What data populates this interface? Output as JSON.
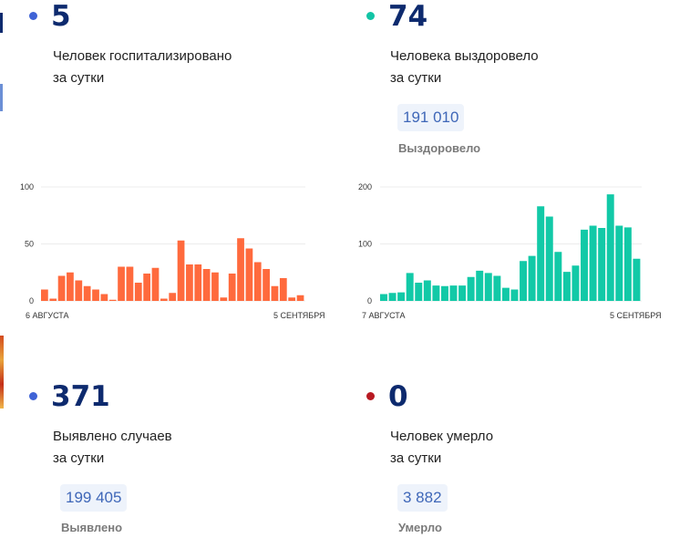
{
  "colors": {
    "blue_dot": "#3f63d6",
    "teal_dot": "#12c4a5",
    "red_dot": "#b81a22",
    "number": "#0d2a6e",
    "bar_orange": "#ff6a3d",
    "bar_teal": "#12c9a7",
    "grid": "#ececec",
    "chip_bg": "#eef3fb",
    "chip_text": "#3f67b8"
  },
  "hospitalized": {
    "value": "5",
    "label_line1": "Человек госпитализировано",
    "label_line2": "за сутки"
  },
  "recovered": {
    "value": "74",
    "label_line1": "Человека выздоровело",
    "label_line2": "за сутки",
    "total": "191 010",
    "total_caption": "Выздоровело"
  },
  "cases": {
    "value": "371",
    "label_line1": "Выявлено случаев",
    "label_line2": "за сутки",
    "total": "199 405",
    "total_caption": "Выявлено"
  },
  "deaths": {
    "value": "0",
    "label_line1": "Человек умерло",
    "label_line2": "за сутки",
    "total": "3 882",
    "total_caption": "Умерло"
  },
  "chart_data": [
    {
      "type": "bar",
      "ylim": [
        0,
        100
      ],
      "y_ticks": [
        "100",
        "50",
        "0"
      ],
      "x_start_label": "6 АВГУСТА",
      "x_end_label": "5 СЕНТЯБРЯ",
      "grid": true,
      "values": [
        10,
        2,
        22,
        25,
        18,
        13,
        10,
        6,
        1,
        30,
        30,
        16,
        24,
        29,
        2,
        7,
        53,
        32,
        32,
        28,
        25,
        3,
        24,
        55,
        46,
        34,
        28,
        13,
        20,
        3,
        5
      ]
    },
    {
      "type": "bar",
      "ylim": [
        0,
        200
      ],
      "y_ticks": [
        "200",
        "100",
        "0"
      ],
      "x_start_label": "7 АВГУСТА",
      "x_end_label": "5 СЕНТЯБРЯ",
      "grid": true,
      "values": [
        12,
        14,
        15,
        49,
        32,
        36,
        27,
        26,
        27,
        27,
        42,
        53,
        49,
        44,
        23,
        20,
        70,
        79,
        166,
        148,
        86,
        51,
        62,
        125,
        132,
        128,
        187,
        132,
        129,
        74
      ]
    }
  ]
}
